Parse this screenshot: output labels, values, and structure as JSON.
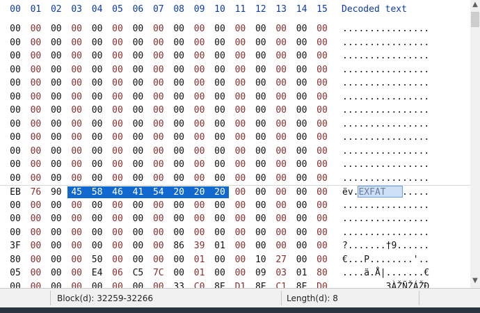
{
  "header": {
    "columns": [
      "00",
      "01",
      "02",
      "03",
      "04",
      "05",
      "06",
      "07",
      "08",
      "09",
      "10",
      "11",
      "12",
      "13",
      "14",
      "15"
    ],
    "decoded_title": "Decoded text"
  },
  "rows": [
    {
      "bytes": [
        "00",
        "00",
        "00",
        "00",
        "00",
        "00",
        "00",
        "00",
        "00",
        "00",
        "00",
        "00",
        "00",
        "00",
        "00",
        "00"
      ],
      "decoded": "................"
    },
    {
      "bytes": [
        "00",
        "00",
        "00",
        "00",
        "00",
        "00",
        "00",
        "00",
        "00",
        "00",
        "00",
        "00",
        "00",
        "00",
        "00",
        "00"
      ],
      "decoded": "................"
    },
    {
      "bytes": [
        "00",
        "00",
        "00",
        "00",
        "00",
        "00",
        "00",
        "00",
        "00",
        "00",
        "00",
        "00",
        "00",
        "00",
        "00",
        "00"
      ],
      "decoded": "................"
    },
    {
      "bytes": [
        "00",
        "00",
        "00",
        "00",
        "00",
        "00",
        "00",
        "00",
        "00",
        "00",
        "00",
        "00",
        "00",
        "00",
        "00",
        "00"
      ],
      "decoded": "................"
    },
    {
      "bytes": [
        "00",
        "00",
        "00",
        "00",
        "00",
        "00",
        "00",
        "00",
        "00",
        "00",
        "00",
        "00",
        "00",
        "00",
        "00",
        "00"
      ],
      "decoded": "................"
    },
    {
      "bytes": [
        "00",
        "00",
        "00",
        "00",
        "00",
        "00",
        "00",
        "00",
        "00",
        "00",
        "00",
        "00",
        "00",
        "00",
        "00",
        "00"
      ],
      "decoded": "................"
    },
    {
      "bytes": [
        "00",
        "00",
        "00",
        "00",
        "00",
        "00",
        "00",
        "00",
        "00",
        "00",
        "00",
        "00",
        "00",
        "00",
        "00",
        "00"
      ],
      "decoded": "................"
    },
    {
      "bytes": [
        "00",
        "00",
        "00",
        "00",
        "00",
        "00",
        "00",
        "00",
        "00",
        "00",
        "00",
        "00",
        "00",
        "00",
        "00",
        "00"
      ],
      "decoded": "................"
    },
    {
      "bytes": [
        "00",
        "00",
        "00",
        "00",
        "00",
        "00",
        "00",
        "00",
        "00",
        "00",
        "00",
        "00",
        "00",
        "00",
        "00",
        "00"
      ],
      "decoded": "................"
    },
    {
      "bytes": [
        "00",
        "00",
        "00",
        "00",
        "00",
        "00",
        "00",
        "00",
        "00",
        "00",
        "00",
        "00",
        "00",
        "00",
        "00",
        "00"
      ],
      "decoded": "................"
    },
    {
      "bytes": [
        "00",
        "00",
        "00",
        "00",
        "00",
        "00",
        "00",
        "00",
        "00",
        "00",
        "00",
        "00",
        "00",
        "00",
        "00",
        "00"
      ],
      "decoded": "................"
    },
    {
      "bytes": [
        "00",
        "00",
        "00",
        "00",
        "00",
        "00",
        "00",
        "00",
        "00",
        "00",
        "00",
        "00",
        "00",
        "00",
        "00",
        "00"
      ],
      "decoded": "................"
    },
    {
      "bytes": [
        "EB",
        "76",
        "90",
        "45",
        "58",
        "46",
        "41",
        "54",
        "20",
        "20",
        "20",
        "00",
        "00",
        "00",
        "00",
        "00"
      ],
      "decoded": "ëv.EXFAT   .....",
      "separator": true,
      "selected_bytes": [
        3,
        10
      ],
      "decoded_selected": [
        3,
        10
      ]
    },
    {
      "bytes": [
        "00",
        "00",
        "00",
        "00",
        "00",
        "00",
        "00",
        "00",
        "00",
        "00",
        "00",
        "00",
        "00",
        "00",
        "00",
        "00"
      ],
      "decoded": "................"
    },
    {
      "bytes": [
        "00",
        "00",
        "00",
        "00",
        "00",
        "00",
        "00",
        "00",
        "00",
        "00",
        "00",
        "00",
        "00",
        "00",
        "00",
        "00"
      ],
      "decoded": "................"
    },
    {
      "bytes": [
        "00",
        "00",
        "00",
        "00",
        "00",
        "00",
        "00",
        "00",
        "00",
        "00",
        "00",
        "00",
        "00",
        "00",
        "00",
        "00"
      ],
      "decoded": "................"
    },
    {
      "bytes": [
        "3F",
        "00",
        "00",
        "00",
        "00",
        "00",
        "00",
        "00",
        "86",
        "39",
        "01",
        "00",
        "00",
        "00",
        "00",
        "00"
      ],
      "decoded": "?.......†9......"
    },
    {
      "bytes": [
        "80",
        "00",
        "00",
        "00",
        "50",
        "00",
        "00",
        "00",
        "00",
        "01",
        "00",
        "00",
        "10",
        "27",
        "00",
        "00"
      ],
      "decoded": "€...P........'.."
    },
    {
      "bytes": [
        "05",
        "00",
        "00",
        "00",
        "E4",
        "06",
        "C5",
        "7C",
        "00",
        "01",
        "00",
        "00",
        "09",
        "03",
        "01",
        "80"
      ],
      "decoded": "....ä.Å|.......€"
    },
    {
      "bytes": [
        "00",
        "00",
        "00",
        "00",
        "00",
        "00",
        "00",
        "00",
        "33",
        "C0",
        "8E",
        "D1",
        "8E",
        "C1",
        "8E",
        "D0"
      ],
      "decoded": "........3ÀŽÑŽÁŽÐ"
    }
  ],
  "status": {
    "block": "Block(d): 32259-32266",
    "length": "Length(d): 8"
  },
  "scrollbar": {
    "up_icon": "▲",
    "down_icon": "▼"
  }
}
